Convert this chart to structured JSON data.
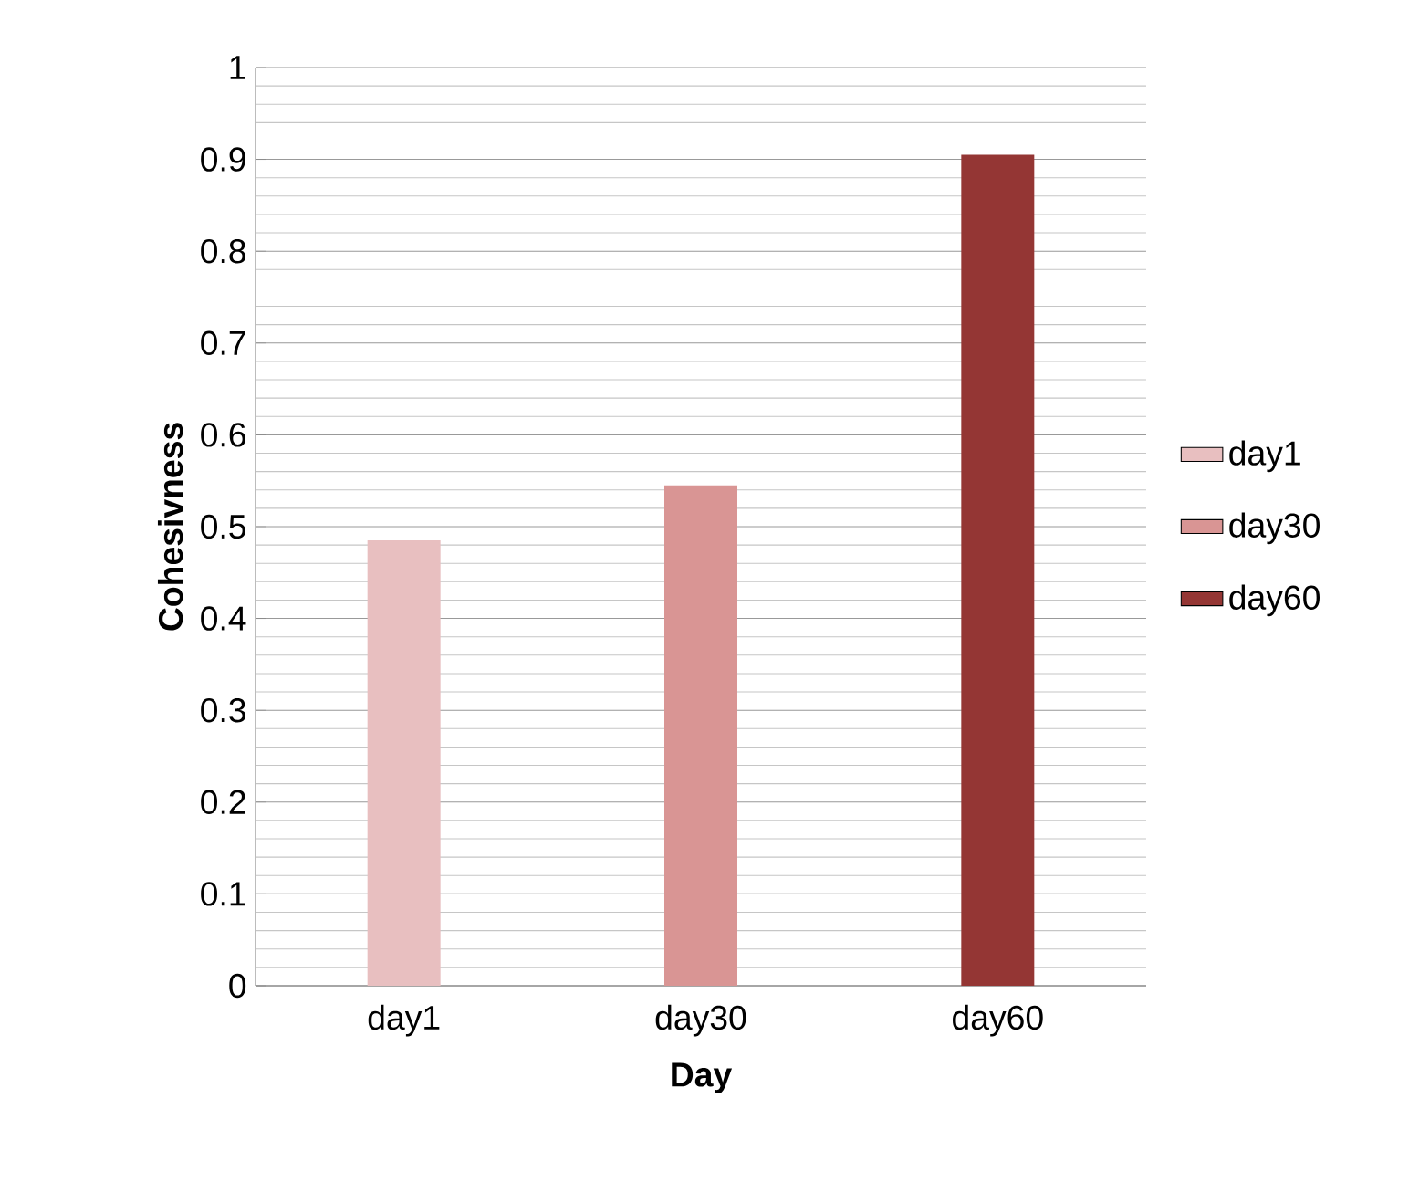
{
  "chart_data": {
    "type": "bar",
    "xlabel": "Day",
    "ylabel": "Cohesivness",
    "categories": [
      "day1",
      "day30",
      "day60"
    ],
    "series": [
      {
        "name": "day1",
        "color": "#e8bfc0",
        "values": [
          0.485,
          null,
          null
        ]
      },
      {
        "name": "day30",
        "color": "#d99594",
        "values": [
          null,
          0.545,
          null
        ]
      },
      {
        "name": "day60",
        "color": "#943634",
        "values": [
          null,
          null,
          0.905
        ]
      }
    ],
    "ylim": [
      0,
      1
    ],
    "yticks": [
      0,
      0.1,
      0.2,
      0.3,
      0.4,
      0.5,
      0.6,
      0.7,
      0.8,
      0.9,
      1
    ],
    "grid": "y",
    "legend": "right"
  }
}
